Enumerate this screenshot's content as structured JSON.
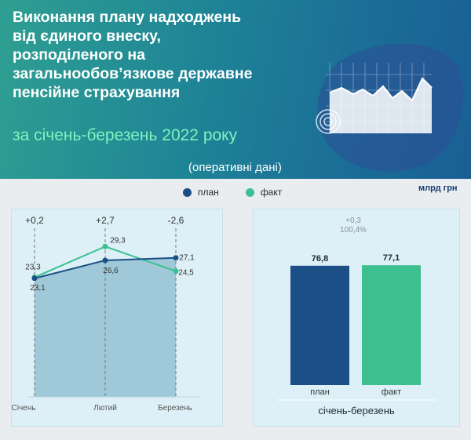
{
  "header": {
    "title": "Виконання плану надходжень\nвід єдиного внеску,\nрозподіленого на\nзагальнообов’язкове державне\nпенсійне страхування",
    "period": "за січень-березень 2022 року",
    "note": "(оперативні дані)"
  },
  "unit": "млрд грн",
  "legend": [
    {
      "label": "план",
      "color": "#1b4f86"
    },
    {
      "label": "факт",
      "color": "#3dbf8f"
    }
  ],
  "chart_data": [
    {
      "type": "line",
      "categories": [
        "Січень",
        "Лютий",
        "Березень"
      ],
      "series": [
        {
          "name": "план",
          "values": [
            23.1,
            26.6,
            27.1
          ],
          "labels": [
            "23,1",
            "26,6",
            "27,1"
          ],
          "color": "#1b4f86"
        },
        {
          "name": "факт",
          "values": [
            23.3,
            29.3,
            24.5
          ],
          "labels": [
            "23,3",
            "29,3",
            "24,5"
          ],
          "color": "#3dbf8f"
        }
      ],
      "differences": [
        "+0,2",
        "+2,7",
        "-2,6"
      ],
      "ylim": [
        0,
        35
      ]
    },
    {
      "type": "bar",
      "categories": [
        "план",
        "факт"
      ],
      "values": [
        76.8,
        77.1
      ],
      "labels": [
        "76,8",
        "77,1"
      ],
      "colors": [
        "#1b4f86",
        "#3dbf8f"
      ],
      "annotation": [
        "+0,3",
        "100,4%"
      ],
      "xlabel": "січень-березень",
      "ylim": [
        0,
        110
      ]
    }
  ]
}
